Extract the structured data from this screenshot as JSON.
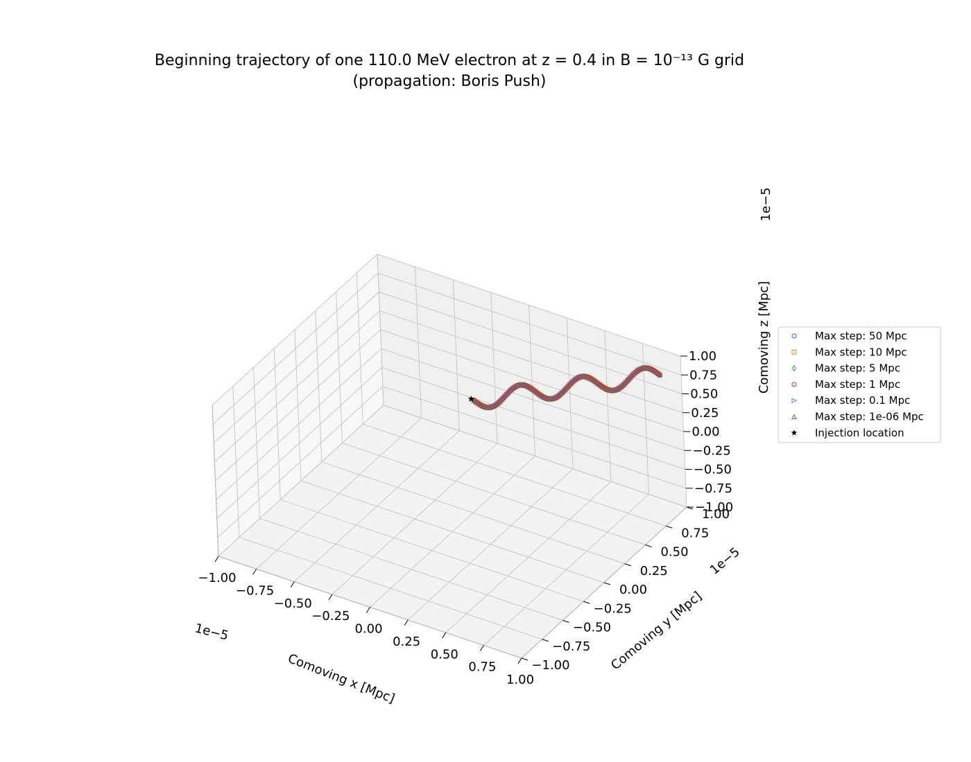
{
  "chart_data": {
    "type": "scatter",
    "projection": "3d",
    "title_line1": "Beginning trajectory of one 110.0 MeV electron at z = 0.4 in B = 10⁻¹³ G grid",
    "title_line2": "(propagation: Boris Push)",
    "xlabel": "Comoving x [Mpc]",
    "ylabel": "Comoving y [Mpc]",
    "zlabel": "Comoving z [Mpc]",
    "axis_multiplier": "1e−5",
    "xlim": [
      -1.0,
      1.0
    ],
    "ylim": [
      -1.0,
      1.0
    ],
    "zlim": [
      -1.0,
      1.0
    ],
    "ticks": [
      "−1.00",
      "−0.75",
      "−0.50",
      "−0.25",
      "0.00",
      "0.25",
      "0.50",
      "0.75",
      "1.00"
    ],
    "tick_values": [
      -1.0,
      -0.75,
      -0.5,
      -0.25,
      0.0,
      0.25,
      0.5,
      0.75,
      1.0
    ],
    "grid": true,
    "legend_position": "right",
    "trajectory": {
      "start": [
        -0.25,
        0.75,
        -0.18
      ],
      "end": [
        1.0,
        0.75,
        1.0
      ],
      "num_oscillations": 3,
      "oscillation_axis": "z",
      "amplitude": 0.12
    },
    "series": [
      {
        "name": "Max step: 50 Mpc",
        "marker": "circle",
        "color": "#1f77b4"
      },
      {
        "name": "Max step: 10 Mpc",
        "marker": "square",
        "color": "#ff7f0e"
      },
      {
        "name": "Max step: 5 Mpc",
        "marker": "diamond",
        "color": "#2ca02c"
      },
      {
        "name": "Max step: 1 Mpc",
        "marker": "circle",
        "color": "#d62728"
      },
      {
        "name": "Max step: 0.1 Mpc",
        "marker": "triangle-right",
        "color": "#9467bd"
      },
      {
        "name": "Max step: 1e-06 Mpc",
        "marker": "triangle-up",
        "color": "#8c564b"
      },
      {
        "name": "Injection location",
        "marker": "star",
        "color": "#000000"
      }
    ],
    "injection_point": [
      -0.25,
      0.75,
      -0.18
    ]
  }
}
